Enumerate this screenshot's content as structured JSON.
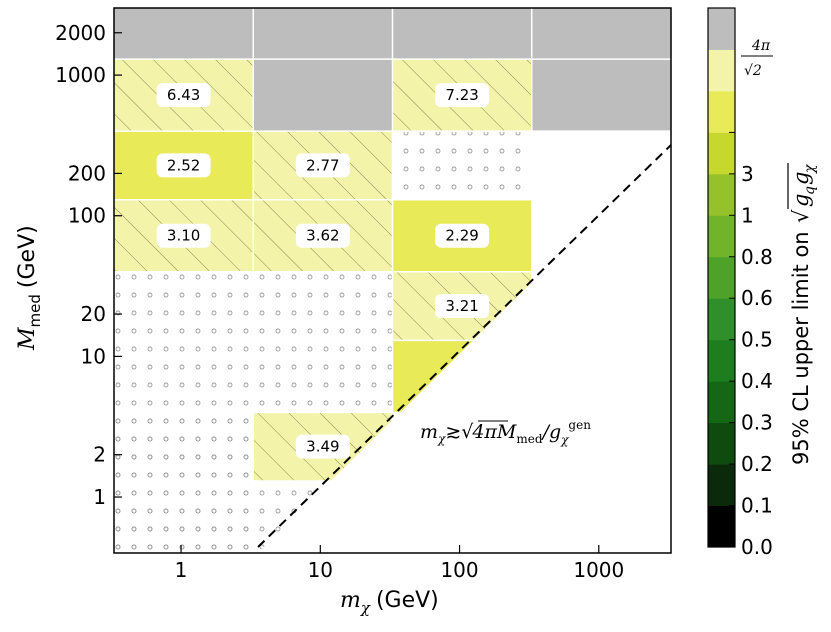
{
  "chart_data": {
    "type": "heatmap",
    "xlabel": {
      "symbol": "m",
      "sub": "χ",
      "unit": "(GeV)"
    },
    "ylabel": {
      "symbol": "M",
      "sub": "med",
      "unit": "(GeV)"
    },
    "x_scale": "log",
    "y_scale": "log",
    "x_ticks": [
      "1",
      "10",
      "100",
      "1000"
    ],
    "y_ticks": [
      "1",
      "2",
      "10",
      "20",
      "100",
      "200",
      "1000",
      "2000"
    ],
    "colorbar": {
      "label": "95% CL upper limit on √(g_q g_χ)",
      "label_text": "95% CL upper limit on",
      "tick_labels": [
        "0.0",
        "0.1",
        "0.2",
        "0.3",
        "0.4",
        "0.5",
        "0.6",
        "0.8",
        "1",
        "3",
        "4π/√2"
      ],
      "top_tick": {
        "numer": "4π",
        "denom": "√2"
      },
      "colors": [
        "#000000",
        "#0b2a0b",
        "#0f4a0f",
        "#156615",
        "#1e7d1e",
        "#2f8f2a",
        "#4ea22a",
        "#71b329",
        "#95c12a",
        "#c6d82e",
        "#e8ea57",
        "#f3f4a9",
        "#bdbdbd"
      ]
    },
    "cells": [
      {
        "mx": [
          0.33,
          3.3
        ],
        "mmed": [
          3000,
          1300
        ],
        "fill": "excluded",
        "value": null
      },
      {
        "mx": [
          3.3,
          33
        ],
        "mmed": [
          3000,
          1300
        ],
        "fill": "excluded",
        "value": null
      },
      {
        "mx": [
          33,
          330
        ],
        "mmed": [
          3000,
          1300
        ],
        "fill": "excluded",
        "value": null
      },
      {
        "mx": [
          330,
          3300
        ],
        "mmed": [
          3000,
          1300
        ],
        "fill": "excluded",
        "value": null
      },
      {
        "mx": [
          0.33,
          3.3
        ],
        "mmed": [
          1300,
          400
        ],
        "fill": "pale_hatched",
        "value": "6.43"
      },
      {
        "mx": [
          3.3,
          33
        ],
        "mmed": [
          1300,
          400
        ],
        "fill": "excluded",
        "value": null
      },
      {
        "mx": [
          33,
          330
        ],
        "mmed": [
          1300,
          400
        ],
        "fill": "pale_hatched",
        "value": "7.23"
      },
      {
        "mx": [
          330,
          3300
        ],
        "mmed": [
          1300,
          400
        ],
        "fill": "excluded",
        "value": null
      },
      {
        "mx": [
          0.33,
          3.3
        ],
        "mmed": [
          400,
          130
        ],
        "fill": "yellow",
        "value": "2.52"
      },
      {
        "mx": [
          3.3,
          33
        ],
        "mmed": [
          400,
          130
        ],
        "fill": "pale_hatched",
        "value": "2.77"
      },
      {
        "mx": [
          33,
          330
        ],
        "mmed": [
          400,
          130
        ],
        "fill": "dotted",
        "value": null
      },
      {
        "mx": [
          0.33,
          3.3
        ],
        "mmed": [
          130,
          40
        ],
        "fill": "pale_hatched",
        "value": "3.10"
      },
      {
        "mx": [
          3.3,
          33
        ],
        "mmed": [
          130,
          40
        ],
        "fill": "pale_hatched",
        "value": "3.62"
      },
      {
        "mx": [
          33,
          330
        ],
        "mmed": [
          130,
          40
        ],
        "fill": "yellow",
        "value": "2.29"
      },
      {
        "mx": [
          33,
          330
        ],
        "mmed": [
          40,
          13
        ],
        "fill": "pale_hatched",
        "value": "3.21"
      },
      {
        "mx": [
          33,
          330
        ],
        "mmed": [
          13,
          4
        ],
        "fill": "yellow",
        "value": null
      },
      {
        "mx": [
          3.3,
          33
        ],
        "mmed": [
          4,
          1.3
        ],
        "fill": "pale_hatched",
        "value": "3.49"
      }
    ],
    "dotted_regions": [
      {
        "mx": [
          0.33,
          33
        ],
        "mmed": [
          40,
          0.4
        ]
      },
      {
        "mx": [
          0.33,
          3.3
        ],
        "mmed": [
          4,
          0.4
        ]
      }
    ],
    "annotation": {
      "text": "m_χ ≳ √(4π) M_med / g_χ^gen",
      "parts": {
        "m": "m",
        "chi": "χ",
        "approx": "≳",
        "root": "4π",
        "M": "M",
        "med": "med",
        "g": "g",
        "gen": "gen"
      }
    },
    "boundary_line": "dashed diagonal",
    "grid": true
  }
}
